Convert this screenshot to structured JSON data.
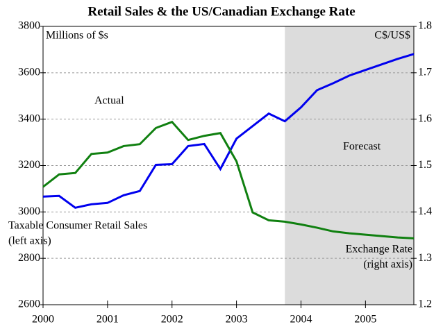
{
  "chart_data": {
    "type": "line",
    "title": "Retail Sales & the US/Canadian Exchange Rate",
    "y_label": "Millions of $s",
    "y2_label": "C$/US$",
    "x": [
      2000,
      2000.25,
      2000.5,
      2000.75,
      2001,
      2001.25,
      2001.5,
      2001.75,
      2002,
      2002.25,
      2002.5,
      2002.75,
      2003,
      2003.25,
      2003.5,
      2003.75,
      2004,
      2004.25,
      2004.5,
      2004.75,
      2005,
      2005.25,
      2005.5,
      2005.75
    ],
    "series": [
      {
        "name": "Taxable Consumer Retail Sales",
        "note": "(left axis)",
        "color": "#0000ee",
        "axis": "y",
        "values": [
          3066,
          3069,
          3018,
          3033,
          3039,
          3072,
          3090,
          3203,
          3206,
          3284,
          3293,
          3185,
          3316,
          3370,
          3424,
          3391,
          3451,
          3525,
          3555,
          3588,
          3612,
          3636,
          3660,
          3681
        ]
      },
      {
        "name": "Exchange Rate",
        "note": "(right axis)",
        "color": "#108010",
        "axis": "y2",
        "values": [
          1.454,
          1.481,
          1.484,
          1.525,
          1.528,
          1.542,
          1.546,
          1.581,
          1.594,
          1.555,
          1.564,
          1.57,
          1.509,
          1.399,
          1.382,
          1.379,
          1.373,
          1.366,
          1.358,
          1.354,
          1.351,
          1.348,
          1.345,
          1.343
        ]
      }
    ],
    "xlim": [
      2000,
      2005.75
    ],
    "xticks": [
      2000,
      2001,
      2002,
      2003,
      2004,
      2005
    ],
    "ylim": [
      2600,
      3800
    ],
    "yticks": [
      2600,
      2800,
      3000,
      3200,
      3400,
      3600,
      3800
    ],
    "y2lim": [
      1.2,
      1.8
    ],
    "y2ticks": [
      1.2,
      1.3,
      1.4,
      1.5,
      1.6,
      1.7,
      1.8
    ],
    "grid": true,
    "forecast_start": 2003.75,
    "shade_color": "#dcdcdc",
    "annotations": [
      "Actual",
      "Forecast"
    ]
  }
}
